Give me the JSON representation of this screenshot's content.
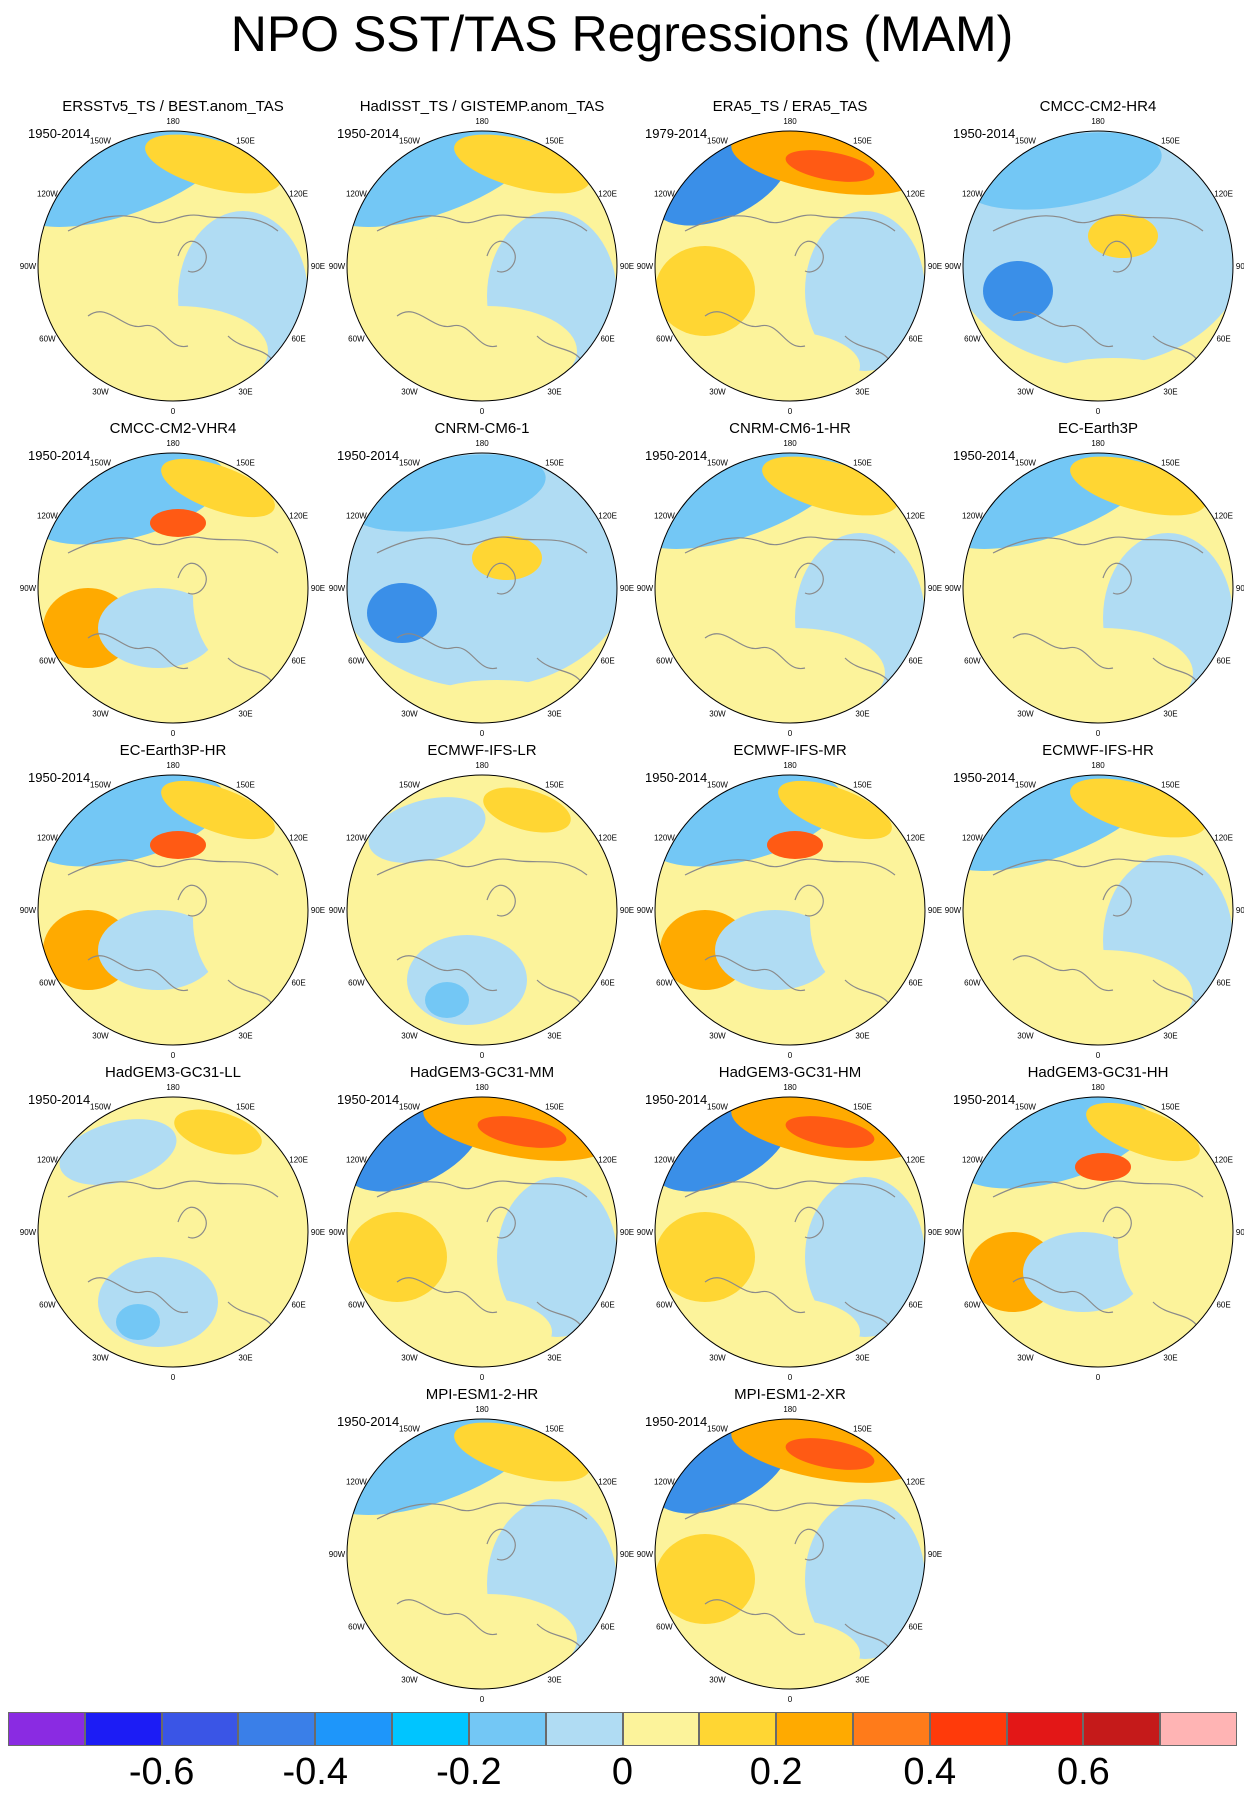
{
  "title": "NPO SST/TAS Regressions (MAM)",
  "longitude_labels": [
    "180",
    "150E",
    "120E",
    "90E",
    "60E",
    "30E",
    "0",
    "30W",
    "60W",
    "90W",
    "120W",
    "150W"
  ],
  "panels": [
    {
      "title": "ERSSTv5_TS / BEST.anom_TAS",
      "period": "1950-2014",
      "pattern": "moderate"
    },
    {
      "title": "HadISST_TS / GISTEMP.anom_TAS",
      "period": "1950-2014",
      "pattern": "moderate"
    },
    {
      "title": "ERA5_TS / ERA5_TAS",
      "period": "1979-2014",
      "pattern": "strong"
    },
    {
      "title": "CMCC-CM2-HR4",
      "period": "1950-2014",
      "pattern": "cold"
    },
    {
      "title": "CMCC-CM2-VHR4",
      "period": "1950-2014",
      "pattern": "mixed"
    },
    {
      "title": "CNRM-CM6-1",
      "period": "1950-2014",
      "pattern": "cold"
    },
    {
      "title": "CNRM-CM6-1-HR",
      "period": "1950-2014",
      "pattern": "moderate"
    },
    {
      "title": "EC-Earth3P",
      "period": "1950-2014",
      "pattern": "moderate"
    },
    {
      "title": "EC-Earth3P-HR",
      "period": "1950-2014",
      "pattern": "mixed"
    },
    {
      "title": "ECMWF-IFS-LR",
      "period": "",
      "pattern": "weak"
    },
    {
      "title": "ECMWF-IFS-MR",
      "period": "1950-2014",
      "pattern": "mixed"
    },
    {
      "title": "ECMWF-IFS-HR",
      "period": "1950-2014",
      "pattern": "moderate"
    },
    {
      "title": "HadGEM3-GC31-LL",
      "period": "1950-2014",
      "pattern": "weak"
    },
    {
      "title": "HadGEM3-GC31-MM",
      "period": "1950-2014",
      "pattern": "strong"
    },
    {
      "title": "HadGEM3-GC31-HM",
      "period": "1950-2014",
      "pattern": "strong"
    },
    {
      "title": "HadGEM3-GC31-HH",
      "period": "1950-2014",
      "pattern": "mixed"
    },
    {
      "title": "MPI-ESM1-2-HR",
      "period": "1950-2014",
      "pattern": "moderate"
    },
    {
      "title": "MPI-ESM1-2-XR",
      "period": "1950-2014",
      "pattern": "strong"
    }
  ],
  "colorbar": {
    "colors": [
      "#8a2be2",
      "#1c1cf5",
      "#3a55e6",
      "#3a7fe8",
      "#1e96fa",
      "#00c5ff",
      "#73c7f5",
      "#b0dcf3",
      "#fcf39b",
      "#ffd633",
      "#ffaa00",
      "#ff7b1a",
      "#ff3a0a",
      "#e31717",
      "#c51a1a",
      "#ffb4b4"
    ],
    "labels": [
      "-0.6",
      "-0.4",
      "-0.2",
      "0",
      "0.2",
      "0.4",
      "0.6"
    ],
    "label_boundary_index": [
      2,
      4,
      6,
      8,
      10,
      12,
      14
    ]
  }
}
